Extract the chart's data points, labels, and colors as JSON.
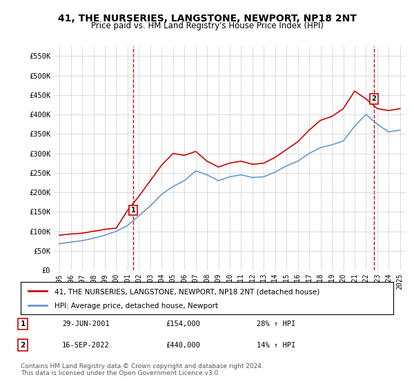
{
  "title": "41, THE NURSERIES, LANGSTONE, NEWPORT, NP18 2NT",
  "subtitle": "Price paid vs. HM Land Registry's House Price Index (HPI)",
  "legend_line1": "41, THE NURSERIES, LANGSTONE, NEWPORT, NP18 2NT (detached house)",
  "legend_line2": "HPI: Average price, detached house, Newport",
  "marker1_label": "1",
  "marker1_date": "29-JUN-2001",
  "marker1_price": "£154,000",
  "marker1_pct": "28% ↑ HPI",
  "marker2_label": "2",
  "marker2_date": "16-SEP-2022",
  "marker2_price": "£440,000",
  "marker2_pct": "14% ↑ HPI",
  "footer": "Contains HM Land Registry data © Crown copyright and database right 2024.\nThis data is licensed under the Open Government Licence v3.0.",
  "red_line_color": "#cc0000",
  "blue_line_color": "#6699cc",
  "marker_box_color": "#cc0000",
  "grid_color": "#cccccc",
  "background_color": "#ffffff",
  "ylim": [
    0,
    575000
  ],
  "yticks": [
    0,
    50000,
    100000,
    150000,
    200000,
    250000,
    300000,
    350000,
    400000,
    450000,
    500000,
    550000
  ],
  "ytick_labels": [
    "£0",
    "£50K",
    "£100K",
    "£150K",
    "£200K",
    "£250K",
    "£300K",
    "£350K",
    "£400K",
    "£450K",
    "£500K",
    "£550K"
  ],
  "hpi_years": [
    1995,
    1996,
    1997,
    1998,
    1999,
    2000,
    2001,
    2002,
    2003,
    2004,
    2005,
    2006,
    2007,
    2008,
    2009,
    2010,
    2011,
    2012,
    2013,
    2014,
    2015,
    2016,
    2017,
    2018,
    2019,
    2020,
    2021,
    2022,
    2023,
    2024,
    2025
  ],
  "hpi_values": [
    68000,
    72000,
    76000,
    82000,
    90000,
    100000,
    115000,
    140000,
    165000,
    195000,
    215000,
    230000,
    255000,
    245000,
    230000,
    240000,
    245000,
    238000,
    240000,
    252000,
    268000,
    280000,
    300000,
    315000,
    322000,
    332000,
    370000,
    400000,
    375000,
    355000,
    360000
  ],
  "red_years": [
    1995,
    1996,
    1997,
    1998,
    1999,
    2000,
    2001,
    2002,
    2003,
    2004,
    2005,
    2006,
    2007,
    2008,
    2009,
    2010,
    2011,
    2012,
    2013,
    2014,
    2015,
    2016,
    2017,
    2018,
    2019,
    2020,
    2021,
    2022,
    2023,
    2024,
    2025
  ],
  "red_values": [
    90000,
    93000,
    95000,
    100000,
    105000,
    108000,
    154000,
    190000,
    230000,
    270000,
    300000,
    295000,
    305000,
    280000,
    265000,
    275000,
    280000,
    272000,
    275000,
    290000,
    310000,
    330000,
    360000,
    385000,
    395000,
    415000,
    460000,
    440000,
    415000,
    410000,
    415000
  ],
  "marker1_x": 2001.5,
  "marker1_y": 154000,
  "marker2_x": 2022.7,
  "marker2_y": 440000,
  "vline1_x": 2001.5,
  "vline2_x": 2022.7,
  "xtick_years": [
    1995,
    1996,
    1997,
    1998,
    1999,
    2000,
    2001,
    2002,
    2003,
    2004,
    2005,
    2006,
    2007,
    2008,
    2009,
    2010,
    2011,
    2012,
    2013,
    2014,
    2015,
    2016,
    2017,
    2018,
    2019,
    2020,
    2021,
    2022,
    2023,
    2024,
    2025
  ]
}
